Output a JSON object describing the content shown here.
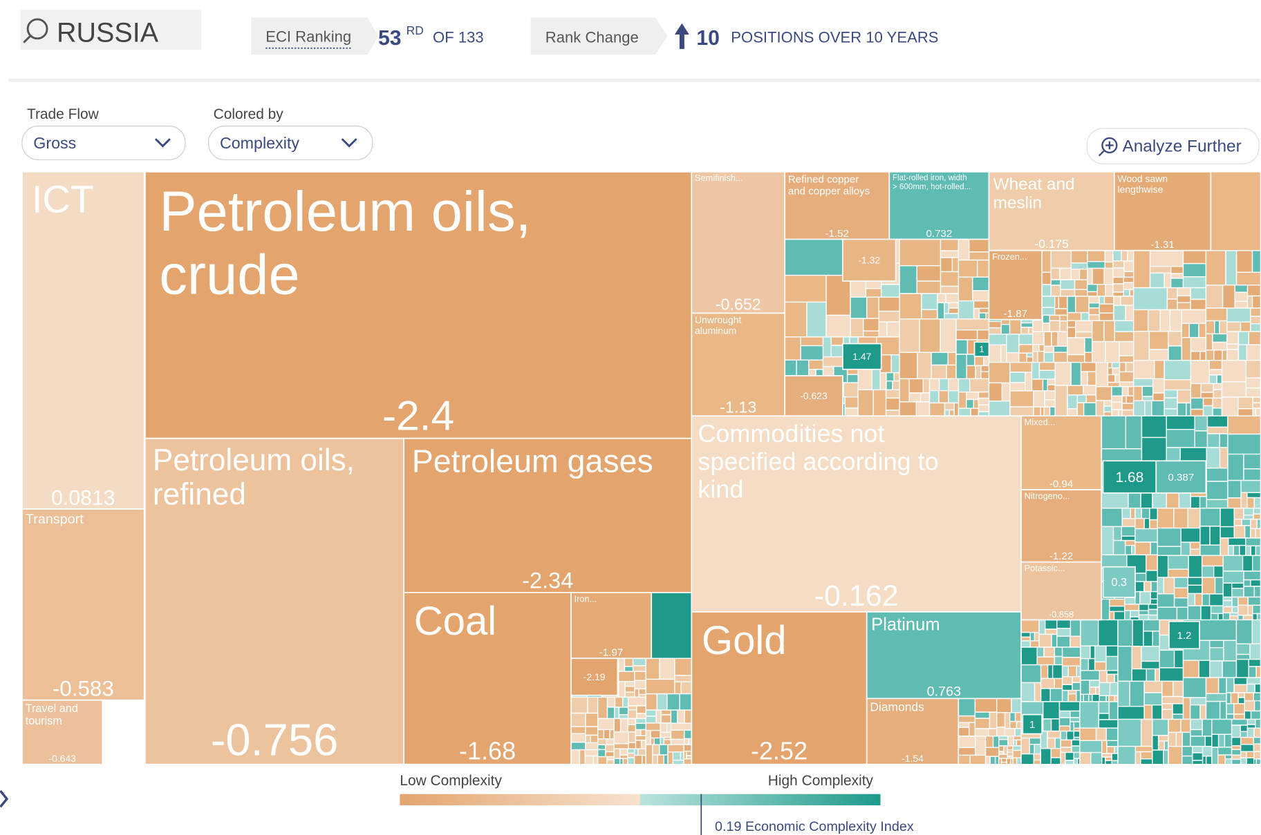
{
  "header": {
    "country": "RUSSIA",
    "eci_label": "ECI Ranking",
    "rank": 53,
    "rank_suffix": "RD",
    "rank_of": "OF 133",
    "change_label": "Rank Change",
    "change": 10,
    "change_text": "POSITIONS OVER 10 YEARS"
  },
  "controls": {
    "trade_flow_label": "Trade Flow",
    "trade_flow": "Gross",
    "colored_by_label": "Colored by",
    "colored_by": "Complexity",
    "analyze": "Analyze Further"
  },
  "treemap": {
    "tiles": [
      {
        "label": "ICT",
        "value": 0.0813
      },
      {
        "label": "Petroleum oils, crude",
        "value": -2.4
      },
      {
        "label": "Transport",
        "value": -0.583
      },
      {
        "label": "Travel and tourism",
        "value": -0.643
      },
      {
        "label": "Petroleum oils, refined",
        "value": -0.756
      },
      {
        "label": "Petroleum gases",
        "value": -2.34
      },
      {
        "label": "Coal",
        "value": -1.68
      },
      {
        "label": "Iron...",
        "value": -1.97
      },
      {
        "value": -2.19
      },
      {
        "label": "Gold",
        "value": -2.52
      },
      {
        "label": "Platinum",
        "value": 0.763
      },
      {
        "label": "Diamonds",
        "value": -1.54
      },
      {
        "label": "Commodities not specified according to kind",
        "value": -0.162
      },
      {
        "label": "Semifinish...",
        "value": -0.652
      },
      {
        "label": "Unwrought aluminum",
        "value": -1.13
      },
      {
        "label": "Refined copper and copper alloys",
        "value": -1.52
      },
      {
        "label": "Flat-rolled iron, width > 600mm, hot-rolled...",
        "value": 0.732
      },
      {
        "label": "Wheat and meslin",
        "value": -0.175
      },
      {
        "label": "Wood sawn lengthwise",
        "value": -1.31
      },
      {
        "value": -1.32
      },
      {
        "value": 1.47
      },
      {
        "value": 1
      },
      {
        "value": -0.623
      },
      {
        "label": "Frozen...",
        "value": -1.87
      },
      {
        "label": "Mixed...",
        "value": -0.94
      },
      {
        "label": "Nitrogeno...",
        "value": -1.22
      },
      {
        "label": "Potassic...",
        "value": -0.858
      },
      {
        "value": 1.68
      },
      {
        "value": 0.387
      },
      {
        "value": 0.3
      },
      {
        "value": 1.2
      },
      {
        "value": 1
      }
    ]
  },
  "legend": {
    "low": "Low Complexity",
    "high": "High Complexity",
    "eci": 0.19,
    "eci_label": "Economic Complexity Index"
  }
}
